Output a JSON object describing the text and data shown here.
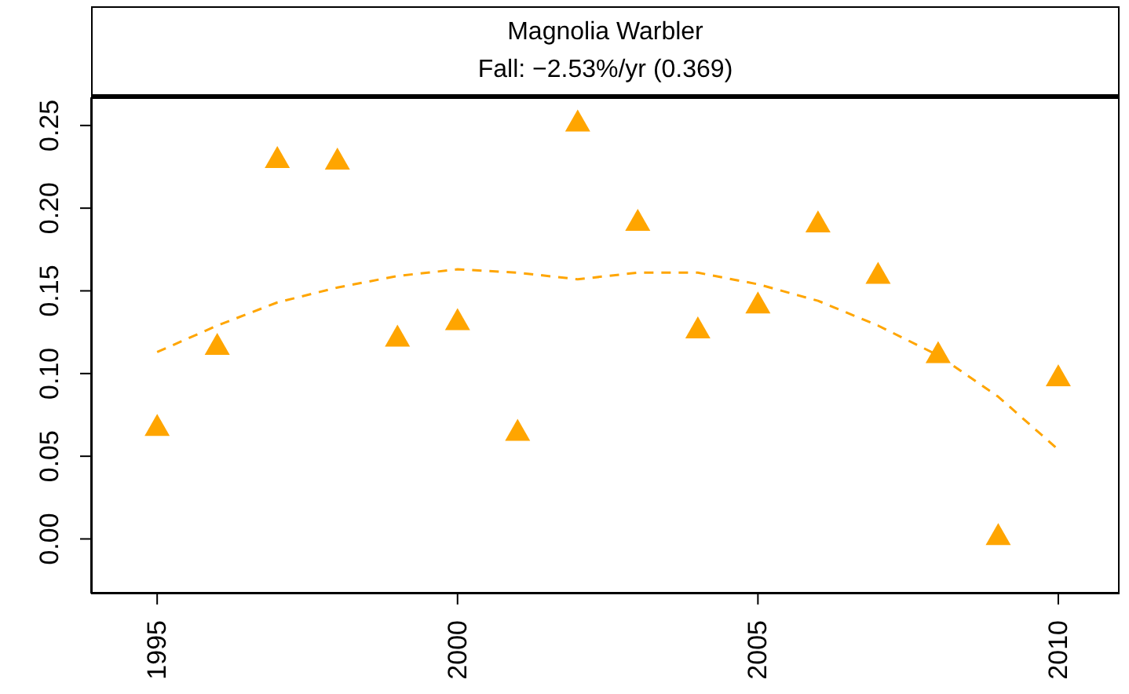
{
  "chart_data": {
    "type": "scatter",
    "title": "Magnolia Warbler",
    "subtitle": "Fall: −2.53%/yr (0.369)",
    "xlim": [
      1993.9,
      2011.02
    ],
    "xticks": [
      1995,
      2000,
      2005,
      2010
    ],
    "ylim": [
      -0.033,
      0.267
    ],
    "yticks": [
      {
        "value": 0,
        "label": "0.00"
      },
      {
        "value": 0.05,
        "label": "0.05"
      },
      {
        "value": 0.1,
        "label": "0.10"
      },
      {
        "value": 0.15,
        "label": "0.15"
      },
      {
        "value": 0.2,
        "label": "0.20"
      },
      {
        "value": 0.25,
        "label": "0.25"
      }
    ],
    "grid": false,
    "legend": false,
    "series": [
      {
        "type": "scatter",
        "marker": "triangle",
        "color": "#ffa500",
        "x": [
          1995,
          1996,
          1997,
          1998,
          1999,
          2000,
          2001,
          2002,
          2003,
          2004,
          2005,
          2006,
          2007,
          2008,
          2009,
          2010
        ],
        "values": [
          0.068,
          0.117,
          0.23,
          0.229,
          0.122,
          0.132,
          0.065,
          0.252,
          0.192,
          0.127,
          0.142,
          0.191,
          0.16,
          0.112,
          0.002,
          0.098
        ]
      },
      {
        "type": "line",
        "line_style": "dashed",
        "marker": "none",
        "color": "#ffa500",
        "x": [
          1995,
          1996,
          1997,
          1998,
          1999,
          2000,
          2001,
          2002,
          2003,
          2004,
          2005,
          2006,
          2007,
          2008,
          2009,
          2010
        ],
        "values": [
          0.113,
          0.129,
          0.143,
          0.152,
          0.159,
          0.163,
          0.161,
          0.157,
          0.161,
          0.161,
          0.154,
          0.144,
          0.129,
          0.111,
          0.086,
          0.054
        ]
      }
    ]
  }
}
